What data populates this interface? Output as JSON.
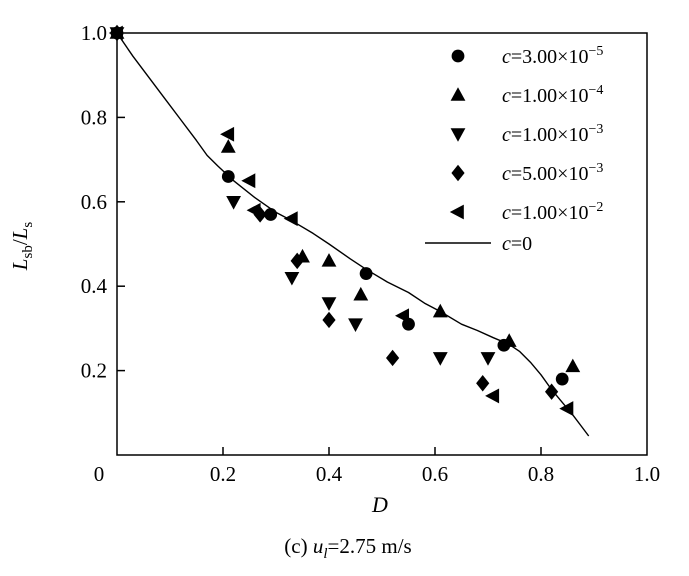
{
  "figure": {
    "caption": {
      "prefix": "(c) ",
      "var": "u",
      "sub": "l",
      "rest": "=2.75 m/s"
    },
    "colors": {
      "foreground": "#000000",
      "background": "#ffffff"
    }
  },
  "chart_data": {
    "type": "scatter",
    "title": "",
    "xlabel": {
      "var": "D"
    },
    "ylabel": {
      "var1": "L",
      "sub1": "sb",
      "slash": "/",
      "var2": "L",
      "sub2": "s"
    },
    "xlim": [
      0,
      1.0
    ],
    "ylim": [
      0,
      1.0
    ],
    "x_ticks": [
      {
        "v": 0,
        "label": "0"
      },
      {
        "v": 0.2,
        "label": "0.2"
      },
      {
        "v": 0.4,
        "label": "0.4"
      },
      {
        "v": 0.6,
        "label": "0.6"
      },
      {
        "v": 0.8,
        "label": "0.8"
      },
      {
        "v": 1.0,
        "label": "1.0"
      }
    ],
    "y_ticks": [
      {
        "v": 0.2,
        "label": "0.2"
      },
      {
        "v": 0.4,
        "label": "0.4"
      },
      {
        "v": 0.6,
        "label": "0.6"
      },
      {
        "v": 0.8,
        "label": "0.8"
      },
      {
        "v": 1.0,
        "label": "1.0"
      }
    ],
    "grid": false,
    "legend_position": "top-right",
    "series": [
      {
        "name": "c=3.00e-5",
        "marker": "circle",
        "legend": {
          "var": "c",
          "eq": "=3.00×10",
          "sup": "−5"
        },
        "points": [
          [
            0,
            1.0
          ],
          [
            0.21,
            0.66
          ],
          [
            0.29,
            0.57
          ],
          [
            0.47,
            0.43
          ],
          [
            0.55,
            0.31
          ],
          [
            0.73,
            0.26
          ],
          [
            0.84,
            0.18
          ]
        ]
      },
      {
        "name": "c=1.00e-4",
        "marker": "triangle-up",
        "legend": {
          "var": "c",
          "eq": "=1.00×10",
          "sup": "−4"
        },
        "points": [
          [
            0,
            1.0
          ],
          [
            0.21,
            0.73
          ],
          [
            0.35,
            0.47
          ],
          [
            0.4,
            0.46
          ],
          [
            0.46,
            0.38
          ],
          [
            0.61,
            0.34
          ],
          [
            0.74,
            0.27
          ],
          [
            0.86,
            0.21
          ]
        ]
      },
      {
        "name": "c=1.00e-3",
        "marker": "triangle-down",
        "legend": {
          "var": "c",
          "eq": "=1.00×10",
          "sup": "−3"
        },
        "points": [
          [
            0,
            1.0
          ],
          [
            0.22,
            0.6
          ],
          [
            0.33,
            0.42
          ],
          [
            0.4,
            0.36
          ],
          [
            0.45,
            0.31
          ],
          [
            0.61,
            0.23
          ],
          [
            0.7,
            0.23
          ]
        ]
      },
      {
        "name": "c=5.00e-3",
        "marker": "diamond",
        "legend": {
          "var": "c",
          "eq": "=5.00×10",
          "sup": "−3"
        },
        "points": [
          [
            0,
            1.0
          ],
          [
            0.27,
            0.57
          ],
          [
            0.34,
            0.46
          ],
          [
            0.4,
            0.32
          ],
          [
            0.52,
            0.23
          ],
          [
            0.69,
            0.17
          ],
          [
            0.82,
            0.15
          ]
        ]
      },
      {
        "name": "c=1.00e-2",
        "marker": "triangle-left",
        "legend": {
          "var": "c",
          "eq": "=1.00×10",
          "sup": "−2"
        },
        "points": [
          [
            0,
            1.0
          ],
          [
            0.21,
            0.76
          ],
          [
            0.25,
            0.65
          ],
          [
            0.26,
            0.58
          ],
          [
            0.33,
            0.56
          ],
          [
            0.54,
            0.33
          ],
          [
            0.71,
            0.14
          ],
          [
            0.85,
            0.11
          ]
        ]
      },
      {
        "name": "c=0",
        "marker": "line",
        "legend": {
          "var": "c",
          "eq": "=0",
          "sup": ""
        },
        "points": [
          [
            0,
            1.0
          ],
          [
            0.03,
            0.945
          ],
          [
            0.06,
            0.895
          ],
          [
            0.09,
            0.845
          ],
          [
            0.12,
            0.795
          ],
          [
            0.15,
            0.745
          ],
          [
            0.17,
            0.71
          ],
          [
            0.19,
            0.685
          ],
          [
            0.22,
            0.65
          ],
          [
            0.26,
            0.61
          ],
          [
            0.3,
            0.575
          ],
          [
            0.33,
            0.555
          ],
          [
            0.37,
            0.525
          ],
          [
            0.4,
            0.5
          ],
          [
            0.44,
            0.465
          ],
          [
            0.47,
            0.44
          ],
          [
            0.51,
            0.41
          ],
          [
            0.55,
            0.385
          ],
          [
            0.58,
            0.36
          ],
          [
            0.61,
            0.34
          ],
          [
            0.65,
            0.31
          ],
          [
            0.68,
            0.295
          ],
          [
            0.71,
            0.278
          ],
          [
            0.74,
            0.262
          ],
          [
            0.76,
            0.245
          ],
          [
            0.78,
            0.22
          ],
          [
            0.8,
            0.19
          ],
          [
            0.82,
            0.155
          ],
          [
            0.84,
            0.125
          ],
          [
            0.86,
            0.095
          ],
          [
            0.875,
            0.07
          ],
          [
            0.89,
            0.045
          ]
        ]
      }
    ]
  }
}
